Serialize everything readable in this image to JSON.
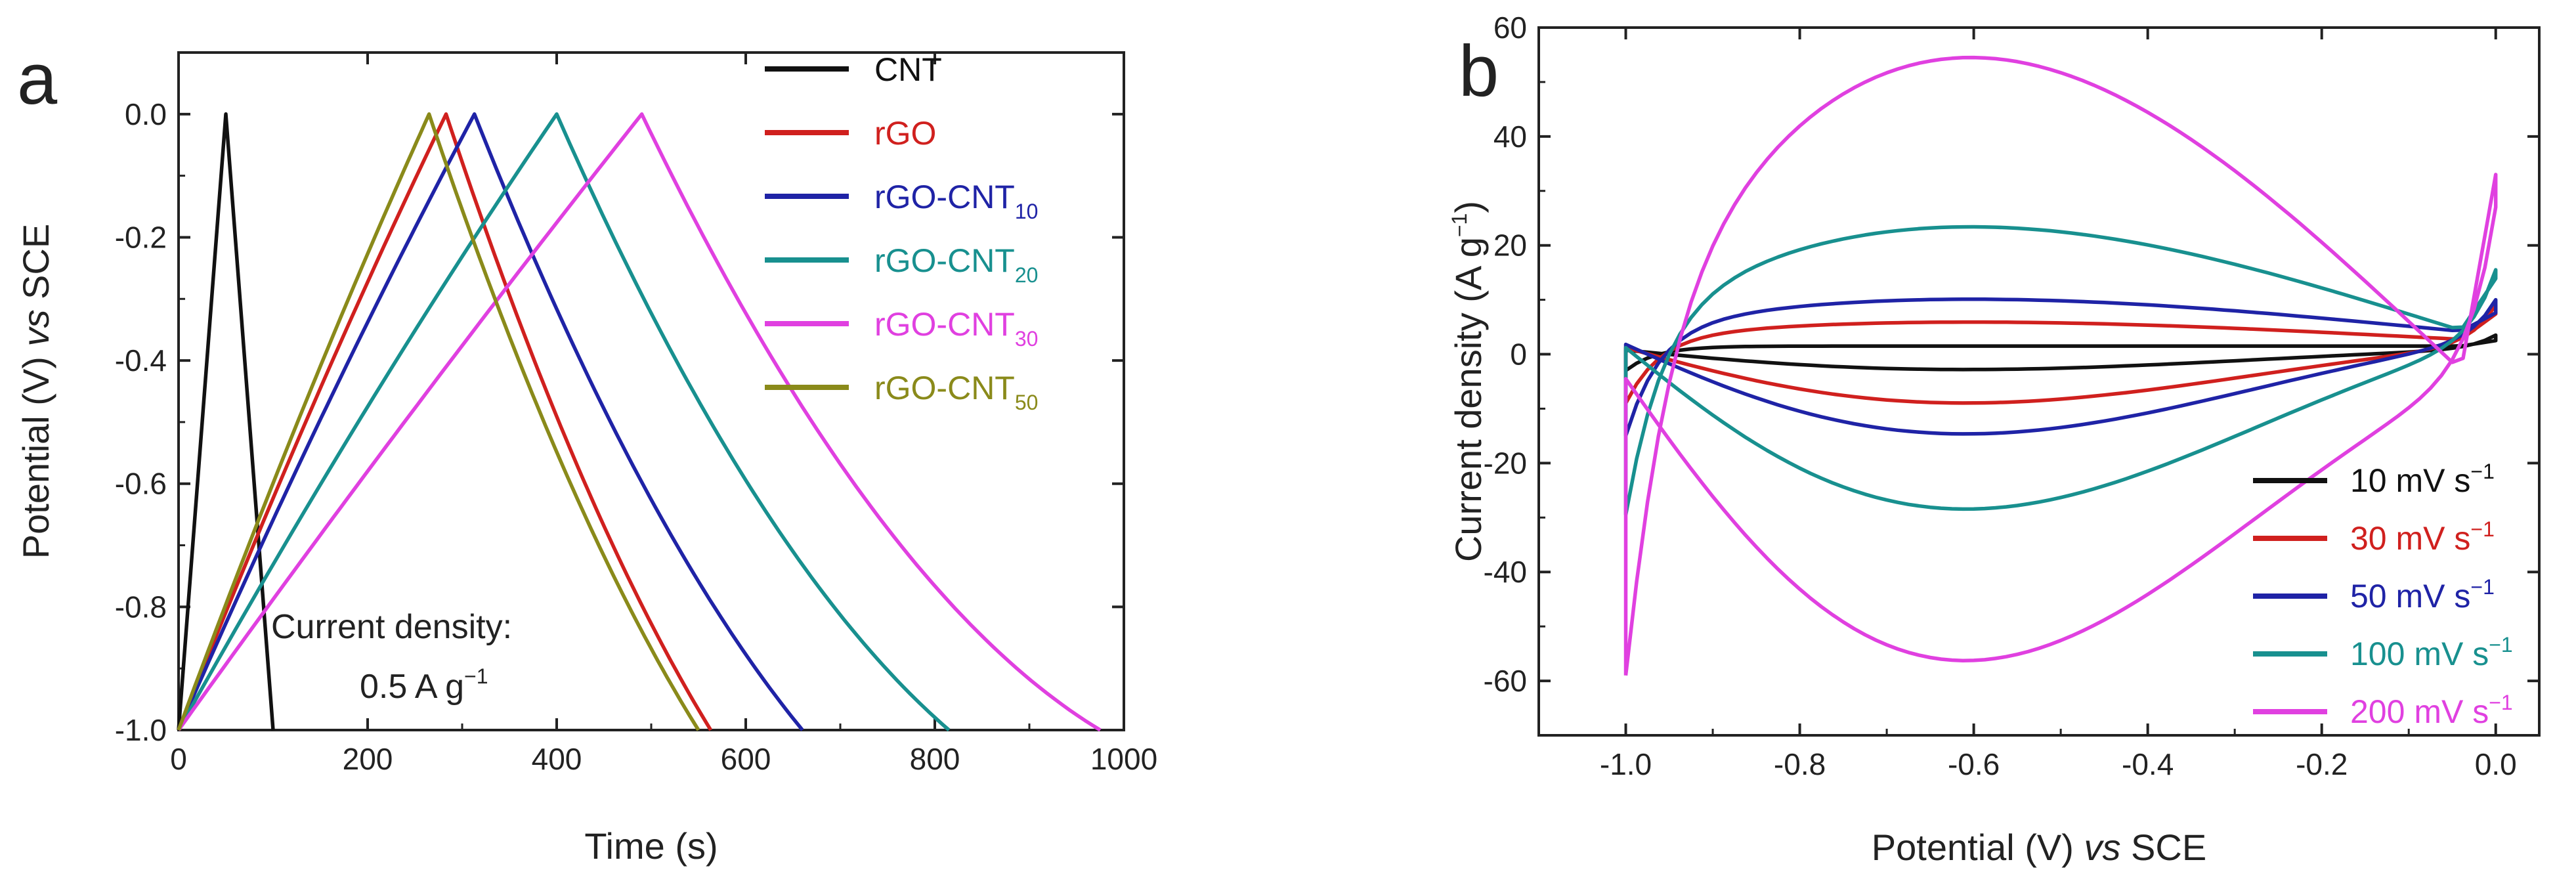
{
  "chart_data": [
    {
      "panel_label": "a",
      "type": "line",
      "title": "",
      "xlabel": "Time (s)",
      "ylabel_parts": [
        "Potential (V) ",
        "vs",
        " SCE"
      ],
      "xlim": [
        0,
        1000
      ],
      "ylim": [
        -1.0,
        0.1
      ],
      "xticks": [
        0,
        200,
        400,
        600,
        800,
        1000
      ],
      "xtick_labels": [
        "0",
        "200",
        "400",
        "600",
        "800",
        "1000"
      ],
      "yticks": [
        0.0,
        -0.2,
        -0.4,
        -0.6,
        -0.8,
        -1.0
      ],
      "ytick_labels": [
        "0.0",
        "-0.2",
        "-0.4",
        "-0.6",
        "-0.8",
        "-1.0"
      ],
      "grid": false,
      "legend_position": "top-right",
      "annotation_lines": [
        "Current density:",
        "0.5 A g"
      ],
      "annotation_sup": "−1",
      "series": [
        {
          "name": "CNT",
          "sub": "",
          "color": "#111111",
          "t_charge": 50,
          "t_end": 100,
          "c1": 0.0,
          "c2": 0.0
        },
        {
          "name": "rGO",
          "sub": "",
          "color": "#d0201e",
          "t_charge": 283,
          "t_end": 563,
          "c1": 0.1,
          "c2": 0.3
        },
        {
          "name": "rGO-CNT",
          "sub": "10",
          "color": "#1f23a6",
          "t_charge": 313,
          "t_end": 660,
          "c1": 0.1,
          "c2": 0.35
        },
        {
          "name": "rGO-CNT",
          "sub": "20",
          "color": "#18908f",
          "t_charge": 400,
          "t_end": 815,
          "c1": 0.1,
          "c2": 0.45
        },
        {
          "name": "rGO-CNT",
          "sub": "30",
          "color": "#e040e0",
          "t_charge": 490,
          "t_end": 975,
          "c1": 0.05,
          "c2": 0.55
        },
        {
          "name": "rGO-CNT",
          "sub": "50",
          "color": "#8a8a1a",
          "t_charge": 265,
          "t_end": 550,
          "c1": 0.1,
          "c2": 0.3
        }
      ]
    },
    {
      "panel_label": "b",
      "type": "line",
      "title": "",
      "xlabel_parts": [
        "Potential (V)  ",
        "vs",
        " SCE"
      ],
      "ylabel": "Current density (A g",
      "ylabel_sup": "−1",
      "ylabel_close": ")",
      "xlim": [
        -1.1,
        0.05
      ],
      "ylim": [
        -70,
        60
      ],
      "xticks": [
        -1.0,
        -0.8,
        -0.6,
        -0.4,
        -0.2,
        0.0
      ],
      "xtick_labels": [
        "-1.0",
        "-0.8",
        "-0.6",
        "-0.4",
        "-0.2",
        "0.0"
      ],
      "yticks": [
        60,
        40,
        20,
        0,
        -20,
        -40,
        -60
      ],
      "ytick_labels": [
        "60",
        "40",
        "20",
        "0",
        "-20",
        "-40",
        "-60"
      ],
      "grid": false,
      "legend_position": "bottom-right",
      "series": [
        {
          "name": "10 mV s",
          "sup": "−1",
          "color": "#111111",
          "top_hump": 2.5,
          "bot_hump": -3.0,
          "end_up": 3.5,
          "end_down": 2.5,
          "start_low": -3.0
        },
        {
          "name": "30 mV s",
          "sup": "−1",
          "color": "#d0201e",
          "top_hump": 7.5,
          "bot_hump": -9.5,
          "end_up": 9.0,
          "end_down": 4.0,
          "start_low": -9.0
        },
        {
          "name": "50 mV s",
          "sup": "−1",
          "color": "#1f23a6",
          "top_hump": 12.5,
          "bot_hump": -15.5,
          "end_up": 10.0,
          "end_down": 6.0,
          "start_low": -15.0
        },
        {
          "name": "100 mV s",
          "sup": "−1",
          "color": "#18908f",
          "top_hump": 25.0,
          "bot_hump": -30.0,
          "end_up": 15.5,
          "end_down": 4.0,
          "start_low": -29.5
        },
        {
          "name": "200 mV s",
          "sup": "−1",
          "color": "#e040e0",
          "top_hump": 48.5,
          "bot_hump": -59.0,
          "end_up": 27.0,
          "end_down": -15.0,
          "start_low": -59.0
        }
      ]
    }
  ]
}
